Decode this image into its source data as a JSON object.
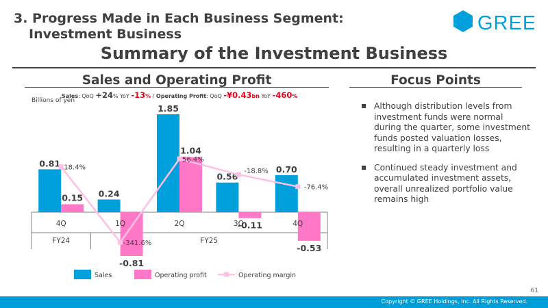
{
  "header": {
    "title_line1": "3. Progress Made in Each Business Segment:",
    "title_line2": "Investment Business",
    "logo_text": "GREE"
  },
  "main_title": "Summary of the Investment Business",
  "sections": {
    "sales_title": "Sales and Operating Profit",
    "focus_title": "Focus Points"
  },
  "kpi": {
    "sales_label": "Sales",
    "qoq1_label": ": QoQ ",
    "sales_qoq": "+24",
    "pct1": "%",
    "yoy1_label": " YoY ",
    "sales_yoy": "-13",
    "pct2": "%",
    "sep": " / ",
    "op_label": "Operating Profit",
    "qoq2_label": ": QoQ ",
    "op_qoq": "-¥0.43",
    "bn": "bn",
    "yoy2_label": " YoY ",
    "op_yoy": "-460",
    "pct3": "%"
  },
  "unit_label": "Billions of yen",
  "chart_data": {
    "type": "bar",
    "categories": [
      "4Q",
      "1Q",
      "2Q",
      "3Q",
      "4Q"
    ],
    "groups": [
      {
        "label": "FY24",
        "span": 1
      },
      {
        "label": "FY25",
        "span": 4
      }
    ],
    "series": [
      {
        "name": "Sales",
        "type": "bar",
        "color": "#00a0dc",
        "values": [
          0.81,
          0.24,
          1.85,
          0.56,
          0.7
        ]
      },
      {
        "name": "Operating profit",
        "type": "bar",
        "color": "#ff78c8",
        "values": [
          0.15,
          -0.81,
          1.04,
          -0.11,
          -0.53
        ]
      },
      {
        "name": "Operating margin",
        "type": "line",
        "color": "#ffc0e3",
        "values": [
          18.4,
          -341.6,
          56.4,
          -18.8,
          -76.4
        ]
      }
    ],
    "value_labels": {
      "Sales": [
        "0.81",
        "0.24",
        "1.85",
        "0.56",
        "0.70"
      ],
      "Operating profit": [
        "0.15",
        "-0.81",
        "1.04",
        "-0.11",
        "-0.53"
      ],
      "Operating margin": [
        "18.4%",
        "-341.6%",
        "56.4%",
        "-18.8%",
        "-76.4%"
      ]
    },
    "ylim": [
      -0.81,
      1.85
    ],
    "margin_ylim": [
      -341.6,
      56.4
    ],
    "legend": [
      "Sales",
      "Operating profit",
      "Operating margin"
    ],
    "legend_position": "bottom"
  },
  "focus_points": [
    "Although distribution levels from investment funds were normal during the quarter, some investment funds posted valuation losses, resulting in a quarterly loss",
    "Continued steady investment and accumulated investment assets, overall unrealized portfolio value remains high"
  ],
  "page_number": "61",
  "copyright": "Copyright © GREE Holdings, Inc. All Rights Reserved."
}
